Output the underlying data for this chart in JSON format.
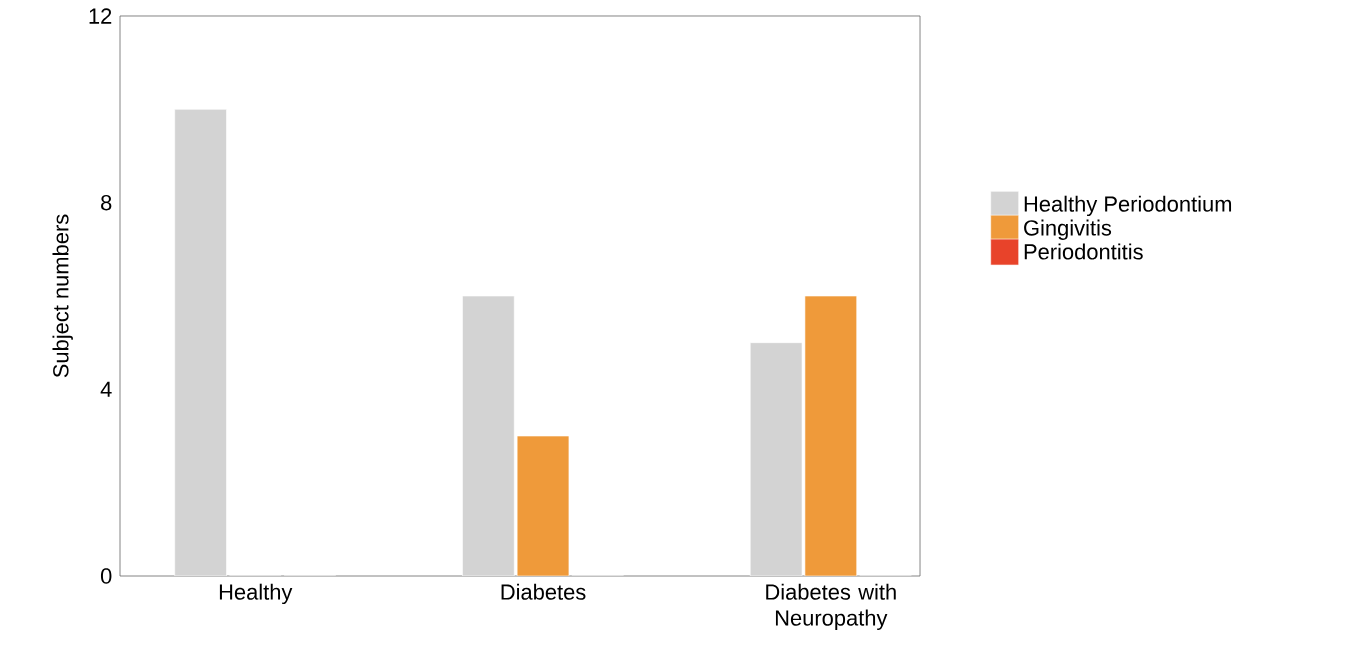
{
  "chart_data": {
    "type": "bar",
    "ylabel": "Subject numbers",
    "categories": [
      "Healthy",
      "Diabetes",
      "Diabetes with Neuropathy"
    ],
    "series": [
      {
        "name": "Healthy Periodontium",
        "color": "#d3d3d3",
        "values": [
          10,
          6,
          5
        ]
      },
      {
        "name": "Gingivitis",
        "color": "#ef9a3a",
        "values": [
          0,
          3,
          6
        ]
      },
      {
        "name": "Periodontitis",
        "color": "#e8432a",
        "values": [
          0,
          0,
          0
        ]
      }
    ],
    "ylim": [
      0,
      12
    ],
    "yticks": [
      0,
      4,
      8,
      12
    ],
    "grid": false,
    "legend": "right"
  }
}
